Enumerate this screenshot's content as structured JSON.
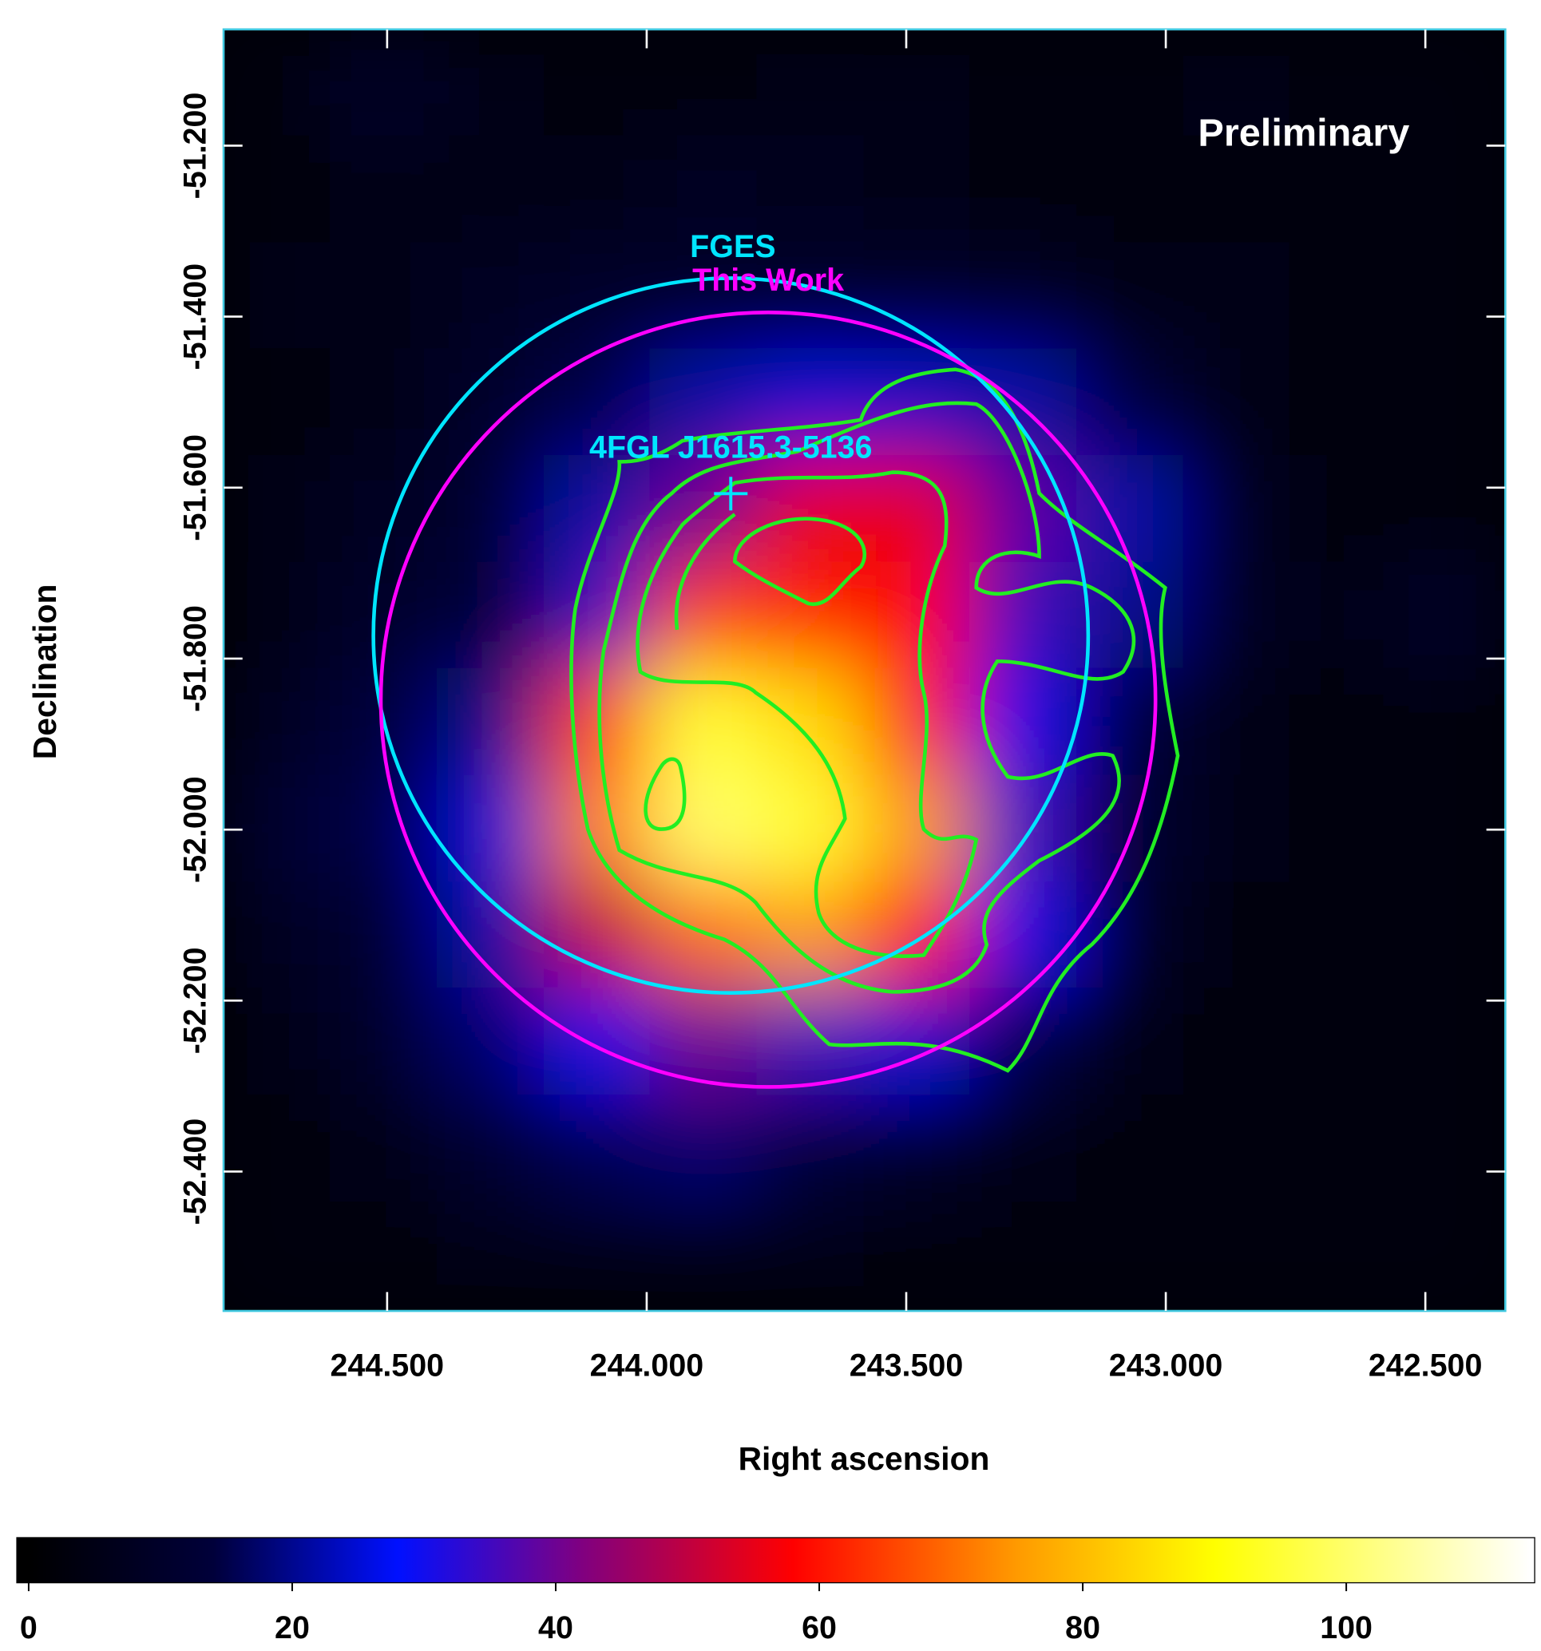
{
  "chart_data": {
    "type": "skymap",
    "xlabel": "Right ascension",
    "ylabel": "Declination",
    "xlim": [
      244.815,
      242.346
    ],
    "ylim": [
      -52.563,
      -51.064
    ],
    "xticks": [
      {
        "value": 244.5,
        "label": "244.500"
      },
      {
        "value": 244.0,
        "label": "244.000"
      },
      {
        "value": 243.5,
        "label": "243.500"
      },
      {
        "value": 243.0,
        "label": "243.000"
      },
      {
        "value": 242.5,
        "label": "242.500"
      }
    ],
    "yticks": [
      {
        "value": -51.2,
        "label": "-51.200"
      },
      {
        "value": -51.4,
        "label": "-51.400"
      },
      {
        "value": -51.6,
        "label": "-51.600"
      },
      {
        "value": -51.8,
        "label": "-51.800"
      },
      {
        "value": -52.0,
        "label": "-52.000"
      },
      {
        "value": -52.2,
        "label": "-52.200"
      },
      {
        "value": -52.4,
        "label": "-52.400"
      }
    ],
    "annotation": "Preliminary",
    "image": {
      "ra": [
        244.712,
        244.507,
        244.301,
        244.095,
        243.891,
        243.685,
        243.479,
        243.275,
        243.069,
        242.863,
        242.659,
        242.453
      ],
      "dec": [
        -51.126,
        -51.251,
        -51.376,
        -51.5,
        -51.625,
        -51.75,
        -51.874,
        -51.999,
        -52.124,
        -52.248,
        -52.373,
        -52.498
      ],
      "values": [
        [
          3,
          10,
          6,
          4,
          4,
          6,
          5,
          3,
          3,
          5,
          4,
          3
        ],
        [
          4,
          6,
          5,
          6,
          8,
          7,
          6,
          4,
          3,
          4,
          4,
          3
        ],
        [
          5,
          6,
          8,
          10,
          10,
          10,
          10,
          9,
          6,
          5,
          4,
          3
        ],
        [
          4,
          6,
          10,
          15,
          22,
          25,
          24,
          22,
          14,
          6,
          4,
          3
        ],
        [
          5,
          8,
          12,
          22,
          40,
          55,
          55,
          38,
          22,
          8,
          4,
          3
        ],
        [
          6,
          10,
          14,
          35,
          65,
          62,
          58,
          35,
          20,
          8,
          6,
          10
        ],
        [
          8,
          14,
          20,
          65,
          95,
          85,
          60,
          30,
          14,
          6,
          4,
          4
        ],
        [
          12,
          15,
          25,
          72,
          100,
          95,
          75,
          35,
          12,
          5,
          3,
          3
        ],
        [
          8,
          12,
          22,
          50,
          70,
          75,
          60,
          30,
          10,
          4,
          3,
          2
        ],
        [
          5,
          10,
          18,
          30,
          40,
          35,
          25,
          15,
          6,
          3,
          2,
          2
        ],
        [
          4,
          6,
          12,
          16,
          18,
          14,
          10,
          6,
          4,
          2,
          2,
          2
        ],
        [
          3,
          4,
          6,
          6,
          6,
          5,
          4,
          3,
          2,
          2,
          2,
          2
        ]
      ]
    },
    "colormap": [
      {
        "value": 0,
        "color": "#000000"
      },
      {
        "value": 14,
        "color": "#00003a"
      },
      {
        "value": 28,
        "color": "#0010ff"
      },
      {
        "value": 42,
        "color": "#800080"
      },
      {
        "value": 58,
        "color": "#ff0000"
      },
      {
        "value": 75,
        "color": "#ff9a00"
      },
      {
        "value": 90,
        "color": "#ffff00"
      },
      {
        "value": 114,
        "color": "#ffffff"
      }
    ],
    "clim": [
      -0.9,
      114.3
    ],
    "cticks": [
      0,
      20,
      40,
      60,
      80,
      100
    ],
    "circles": [
      {
        "name": "FGES",
        "color": "#00e5ff",
        "ra": 243.838,
        "dec": -51.773,
        "radius": 0.418
      },
      {
        "name": "This Work",
        "color": "#ff00ff",
        "ra": 243.766,
        "dec": -51.848,
        "radius": 0.453
      }
    ],
    "source": {
      "name": "4FGL J1615.3-5136",
      "color": "#00e5ff",
      "ra": 243.838,
      "dec": -51.607
    }
  }
}
